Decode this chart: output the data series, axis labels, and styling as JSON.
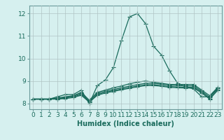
{
  "xlabel": "Humidex (Indice chaleur)",
  "xlim": [
    -0.5,
    23.5
  ],
  "ylim": [
    7.75,
    12.35
  ],
  "yticks": [
    8,
    9,
    10,
    11,
    12
  ],
  "bg_color": "#d6f0ef",
  "grid_color": "#b0c4c4",
  "line_color": "#1a6b5c",
  "spine_color": "#6a9a9a",
  "lines": [
    [
      8.2,
      8.2,
      8.2,
      8.3,
      8.4,
      8.4,
      8.6,
      8.0,
      8.8,
      9.05,
      9.6,
      10.8,
      11.85,
      12.0,
      11.55,
      10.55,
      10.15,
      9.45,
      8.9,
      8.75,
      8.65,
      8.3,
      8.3,
      8.7
    ],
    [
      8.2,
      8.2,
      8.2,
      8.25,
      8.3,
      8.35,
      8.5,
      8.15,
      8.5,
      8.6,
      8.7,
      8.78,
      8.88,
      8.95,
      9.0,
      8.95,
      8.9,
      8.85,
      8.85,
      8.85,
      8.85,
      8.6,
      8.35,
      8.72
    ],
    [
      8.2,
      8.2,
      8.2,
      8.22,
      8.28,
      8.33,
      8.45,
      8.1,
      8.45,
      8.55,
      8.63,
      8.7,
      8.78,
      8.84,
      8.9,
      8.9,
      8.86,
      8.82,
      8.8,
      8.79,
      8.79,
      8.55,
      8.28,
      8.67
    ],
    [
      8.2,
      8.2,
      8.2,
      8.2,
      8.25,
      8.3,
      8.4,
      8.08,
      8.4,
      8.5,
      8.58,
      8.65,
      8.72,
      8.78,
      8.84,
      8.84,
      8.8,
      8.76,
      8.74,
      8.73,
      8.73,
      8.5,
      8.22,
      8.62
    ],
    [
      8.2,
      8.2,
      8.2,
      8.2,
      8.22,
      8.27,
      8.37,
      8.06,
      8.37,
      8.47,
      8.54,
      8.61,
      8.68,
      8.74,
      8.8,
      8.8,
      8.77,
      8.72,
      8.7,
      8.69,
      8.69,
      8.47,
      8.2,
      8.59
    ]
  ],
  "marker": "+",
  "marker_size": 4,
  "linewidth": 0.9,
  "tick_font_size": 6.5,
  "label_font_size": 7.0
}
